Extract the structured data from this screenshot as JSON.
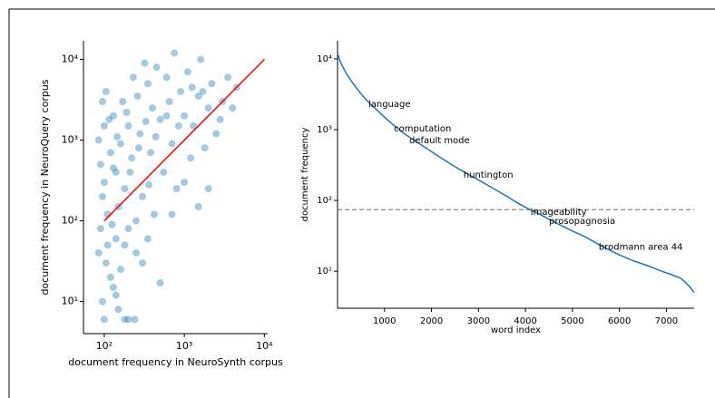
{
  "chart_data": [
    {
      "type": "scatter",
      "xscale": "log",
      "yscale": "log",
      "x_label": "document frequency in NeuroSynth corpus",
      "y_label": "document frequency in NeuroQuery corpus",
      "color": "#1f77b4",
      "x": [
        95,
        100,
        105,
        110,
        120,
        90,
        85,
        130,
        140,
        150,
        180,
        200,
        240,
        110,
        95,
        100,
        90,
        85,
        100,
        95,
        105,
        120,
        130,
        140,
        150,
        160,
        170,
        180,
        200,
        200,
        220,
        250,
        260,
        280,
        300,
        320,
        350,
        380,
        400,
        420,
        450,
        500,
        550,
        600,
        650,
        700,
        750,
        800,
        900,
        1000,
        1100,
        1200,
        1300,
        1500,
        1600,
        1800,
        2000,
        2200,
        2500,
        3000,
        3500,
        4000,
        4500,
        2000,
        1500,
        1000,
        700,
        500,
        350,
        300,
        250,
        180,
        160,
        140,
        130,
        115,
        125,
        145,
        190,
        210,
        230,
        270,
        330,
        360,
        440,
        600,
        850,
        1250,
        1700,
        2800
      ],
      "values": [
        10,
        6,
        30,
        50,
        20,
        80,
        40,
        15,
        12,
        8,
        6,
        6,
        6,
        120,
        200,
        300,
        500,
        1000,
        1500,
        3000,
        4000,
        700,
        2000,
        400,
        150,
        900,
        3000,
        250,
        1500,
        80,
        600,
        40,
        3500,
        1200,
        200,
        9000,
        5000,
        700,
        2500,
        120,
        8000,
        1800,
        400,
        6000,
        3000,
        900,
        12000,
        250,
        4000,
        2000,
        7000,
        600,
        1500,
        3500,
        10000,
        800,
        2500,
        5000,
        1200,
        3000,
        6000,
        2500,
        4500,
        250,
        150,
        300,
        120,
        17,
        60,
        30,
        100,
        50,
        25,
        60,
        450,
        1800,
        90,
        1100,
        2200,
        400,
        6000,
        800,
        1700,
        280,
        1100,
        2000,
        1500,
        4500,
        4000,
        1800
      ],
      "fit_line": {
        "x": [
          100,
          10000
        ],
        "values": [
          100,
          10000
        ],
        "color": "#ff0000"
      },
      "xlim": [
        55,
        11000
      ],
      "xticks": [
        {
          "value": 100,
          "label": "10²"
        },
        {
          "value": 1000,
          "label": "10³"
        },
        {
          "value": 10000,
          "label": "10⁴"
        }
      ],
      "ylim": [
        4,
        17000
      ],
      "yticks": [
        {
          "value": 10,
          "label": "10¹"
        },
        {
          "value": 100,
          "label": "10²"
        },
        {
          "value": 1000,
          "label": "10³"
        },
        {
          "value": 10000,
          "label": "10⁴"
        }
      ]
    },
    {
      "type": "line",
      "xscale": "linear",
      "yscale": "log",
      "x_label": "word index",
      "y_label": "document frequency",
      "color": "#1f77b4",
      "x": [
        0,
        50,
        100,
        200,
        300,
        400,
        500,
        600,
        700,
        800,
        1000,
        1200,
        1400,
        1600,
        1800,
        2000,
        2200,
        2500,
        2800,
        3000,
        3300,
        3600,
        3800,
        4000,
        4300,
        4600,
        5000,
        5300,
        5600,
        6000,
        6300,
        6600,
        6900,
        7100,
        7300,
        7400,
        7500,
        7590
      ],
      "values": [
        12000,
        9500,
        8000,
        6000,
        4800,
        3900,
        3200,
        2700,
        2300,
        2000,
        1500,
        1150,
        900,
        730,
        600,
        490,
        400,
        300,
        230,
        195,
        150,
        115,
        95,
        80,
        64,
        50,
        37,
        30,
        23,
        17,
        14,
        12,
        10,
        9,
        8,
        7,
        6,
        5
      ],
      "hline": {
        "value": 74,
        "color": "#808080"
      },
      "annotations": [
        {
          "text": "language",
          "x": 656,
          "y": 2300
        },
        {
          "text": "computation",
          "x": 1200,
          "y": 1030
        },
        {
          "text": "default mode",
          "x": 1525,
          "y": 700
        },
        {
          "text": "huntington",
          "x": 2680,
          "y": 230
        },
        {
          "text": "imageability",
          "x": 4110,
          "y": 68
        },
        {
          "text": "prosopagnosia",
          "x": 4500,
          "y": 51
        },
        {
          "text": "brodmann area 44",
          "x": 5560,
          "y": 22
        }
      ],
      "xlim": [
        0,
        7590
      ],
      "xticks": [
        1000,
        2000,
        3000,
        4000,
        5000,
        6000,
        7000
      ],
      "ylim": [
        3,
        18000
      ],
      "yticks": [
        {
          "value": 10,
          "label": "10¹"
        },
        {
          "value": 100,
          "label": "10²"
        },
        {
          "value": 1000,
          "label": "10³"
        },
        {
          "value": 10000,
          "label": "10⁴"
        }
      ]
    }
  ]
}
